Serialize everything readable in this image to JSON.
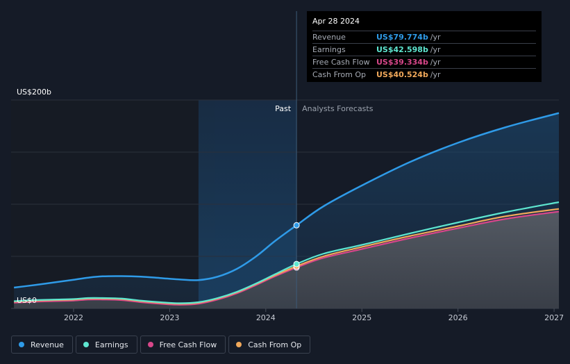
{
  "chart_data": {
    "type": "area",
    "y_label_top": "US$200b",
    "y_label_bottom": "US$0",
    "ylim": [
      0,
      200
    ],
    "xlim": [
      2021.35,
      2027.05
    ],
    "divider_date": 2024.32,
    "past_band_start": 2023.3,
    "past_label": "Past",
    "forecast_label": "Analysts Forecasts",
    "x_ticks": [
      {
        "value": 2022,
        "label": "2022"
      },
      {
        "value": 2023,
        "label": "2023"
      },
      {
        "value": 2024,
        "label": "2024"
      },
      {
        "value": 2025,
        "label": "2025"
      },
      {
        "value": 2026,
        "label": "2026"
      },
      {
        "value": 2027,
        "label": "2027"
      }
    ],
    "grid_values": [
      0,
      50,
      100,
      150,
      200
    ],
    "series": [
      {
        "name": "Revenue",
        "color": "#2f9be8",
        "x": [
          2021.38,
          2021.6,
          2021.8,
          2022.0,
          2022.15,
          2022.3,
          2022.5,
          2022.7,
          2022.9,
          2023.1,
          2023.3,
          2023.5,
          2023.7,
          2023.9,
          2024.1,
          2024.32
        ],
        "y": [
          20,
          22.5,
          25,
          27.5,
          29.5,
          30.8,
          31,
          30.5,
          29.2,
          27.8,
          27.2,
          30.5,
          38,
          50,
          65,
          79.8
        ],
        "fx": [
          2024.32,
          2024.6,
          2025.0,
          2025.5,
          2026.0,
          2026.5,
          2027.05
        ],
        "fy": [
          79.8,
          98,
          118,
          140.5,
          159,
          174,
          187.5
        ]
      },
      {
        "name": "Earnings",
        "color": "#5ee6d0",
        "x": [
          2021.38,
          2021.6,
          2021.8,
          2022.0,
          2022.15,
          2022.3,
          2022.5,
          2022.7,
          2022.9,
          2023.1,
          2023.3,
          2023.5,
          2023.7,
          2023.9,
          2024.1,
          2024.32
        ],
        "y": [
          7,
          8,
          8.5,
          9,
          10,
          10,
          9.5,
          7.5,
          6,
          5,
          6,
          10,
          16,
          24,
          33,
          42.6
        ],
        "fx": [
          2024.32,
          2024.6,
          2025.0,
          2025.5,
          2026.0,
          2026.5,
          2027.05
        ],
        "fy": [
          42.6,
          52.5,
          61,
          72,
          82.5,
          92.5,
          102
        ]
      },
      {
        "name": "Free Cash Flow",
        "color": "#d8478a",
        "x": [
          2021.38,
          2021.6,
          2021.8,
          2022.0,
          2022.15,
          2022.3,
          2022.5,
          2022.7,
          2022.9,
          2023.1,
          2023.3,
          2023.5,
          2023.7,
          2023.9,
          2024.1,
          2024.32
        ],
        "y": [
          5.5,
          6.5,
          7,
          7.5,
          8.5,
          8.5,
          8,
          6,
          4.5,
          3.5,
          4.5,
          8.5,
          14.5,
          22.5,
          31,
          39.3
        ],
        "fx": [
          2024.32,
          2024.6,
          2025.0,
          2025.5,
          2026.0,
          2026.5,
          2027.05
        ],
        "fy": [
          39.3,
          48.5,
          57,
          67.5,
          77,
          86,
          93
        ]
      },
      {
        "name": "Cash From Op",
        "color": "#f0a85a",
        "x": [
          2021.38,
          2021.6,
          2021.8,
          2022.0,
          2022.15,
          2022.3,
          2022.5,
          2022.7,
          2022.9,
          2023.1,
          2023.3,
          2023.5,
          2023.7,
          2023.9,
          2024.1,
          2024.32
        ],
        "y": [
          6.5,
          7.5,
          8,
          8.5,
          9.5,
          9.5,
          9,
          7,
          5.5,
          4.5,
          5.5,
          9.5,
          15.5,
          23.5,
          32,
          40.5
        ],
        "fx": [
          2024.32,
          2024.6,
          2025.0,
          2025.5,
          2026.0,
          2026.5,
          2027.05
        ],
        "fy": [
          40.5,
          50,
          59,
          69.5,
          79,
          88.5,
          95.5
        ]
      }
    ]
  },
  "tooltip": {
    "date": "Apr 28 2024",
    "rows": [
      {
        "name": "Revenue",
        "value": "US$79.774b",
        "unit": "/yr",
        "color": "#2f9be8"
      },
      {
        "name": "Earnings",
        "value": "US$42.598b",
        "unit": "/yr",
        "color": "#5ee6d0"
      },
      {
        "name": "Free Cash Flow",
        "value": "US$39.334b",
        "unit": "/yr",
        "color": "#d8478a"
      },
      {
        "name": "Cash From Op",
        "value": "US$40.524b",
        "unit": "/yr",
        "color": "#f0a85a"
      }
    ]
  },
  "legend": [
    {
      "label": "Revenue",
      "color": "#2f9be8"
    },
    {
      "label": "Earnings",
      "color": "#5ee6d0"
    },
    {
      "label": "Free Cash Flow",
      "color": "#d8478a"
    },
    {
      "label": "Cash From Op",
      "color": "#f0a85a"
    }
  ]
}
